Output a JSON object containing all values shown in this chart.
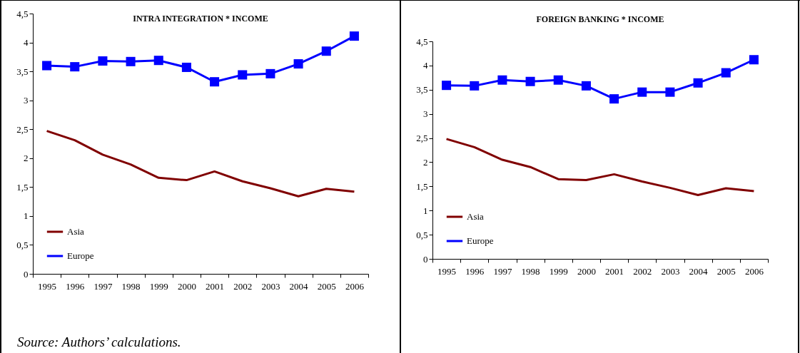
{
  "chart_data": [
    {
      "type": "line",
      "title": "INTRA INTEGRATION * INCOME",
      "categories": [
        "1995",
        "1996",
        "1997",
        "1998",
        "1999",
        "2000",
        "2001",
        "2002",
        "2003",
        "2004",
        "2005",
        "2006"
      ],
      "series": [
        {
          "name": "Asia",
          "color": "#800000",
          "marker": "none",
          "values": [
            2.47,
            2.31,
            2.06,
            1.89,
            1.66,
            1.62,
            1.77,
            1.6,
            1.48,
            1.34,
            1.47,
            1.42
          ]
        },
        {
          "name": "Europe",
          "color": "#0000ff",
          "marker": "square",
          "values": [
            3.6,
            3.58,
            3.68,
            3.67,
            3.69,
            3.57,
            3.32,
            3.44,
            3.46,
            3.63,
            3.85,
            4.11
          ]
        }
      ],
      "ylim": [
        0,
        4.5
      ],
      "yticks": [
        0,
        {
          "value": 0.5,
          "label": "0,5"
        },
        1,
        {
          "value": 1.5,
          "label": "1,5"
        },
        2,
        {
          "value": 2.5,
          "label": "2,5"
        },
        3,
        {
          "value": 3.5,
          "label": "3,5"
        },
        4,
        {
          "value": 4.5,
          "label": "4,5"
        }
      ],
      "grid": false,
      "legend": "bottom left",
      "annotations": [
        "Source: Authors’ calculations."
      ]
    },
    {
      "type": "line",
      "title": "FOREIGN BANKING * INCOME",
      "categories": [
        "1995",
        "1996",
        "1997",
        "1998",
        "1999",
        "2000",
        "2001",
        "2002",
        "2003",
        "2004",
        "2005",
        "2006"
      ],
      "series": [
        {
          "name": "Asia",
          "color": "#800000",
          "marker": "none",
          "values": [
            2.48,
            2.31,
            2.05,
            1.9,
            1.65,
            1.63,
            1.75,
            1.6,
            1.47,
            1.32,
            1.46,
            1.4
          ]
        },
        {
          "name": "Europe",
          "color": "#0000ff",
          "marker": "square",
          "values": [
            3.59,
            3.58,
            3.7,
            3.67,
            3.7,
            3.58,
            3.31,
            3.45,
            3.45,
            3.64,
            3.85,
            4.12
          ]
        }
      ],
      "ylim": [
        0,
        4.5
      ],
      "yticks": [
        0,
        {
          "value": 0.5,
          "label": "0,5"
        },
        1,
        {
          "value": 1.5,
          "label": "1,5"
        },
        2,
        {
          "value": 2.5,
          "label": "2,5"
        },
        3,
        {
          "value": 3.5,
          "label": "3,5"
        },
        4,
        {
          "value": 4.5,
          "label": "4,5"
        }
      ],
      "grid": false,
      "legend": "bottom left"
    }
  ]
}
